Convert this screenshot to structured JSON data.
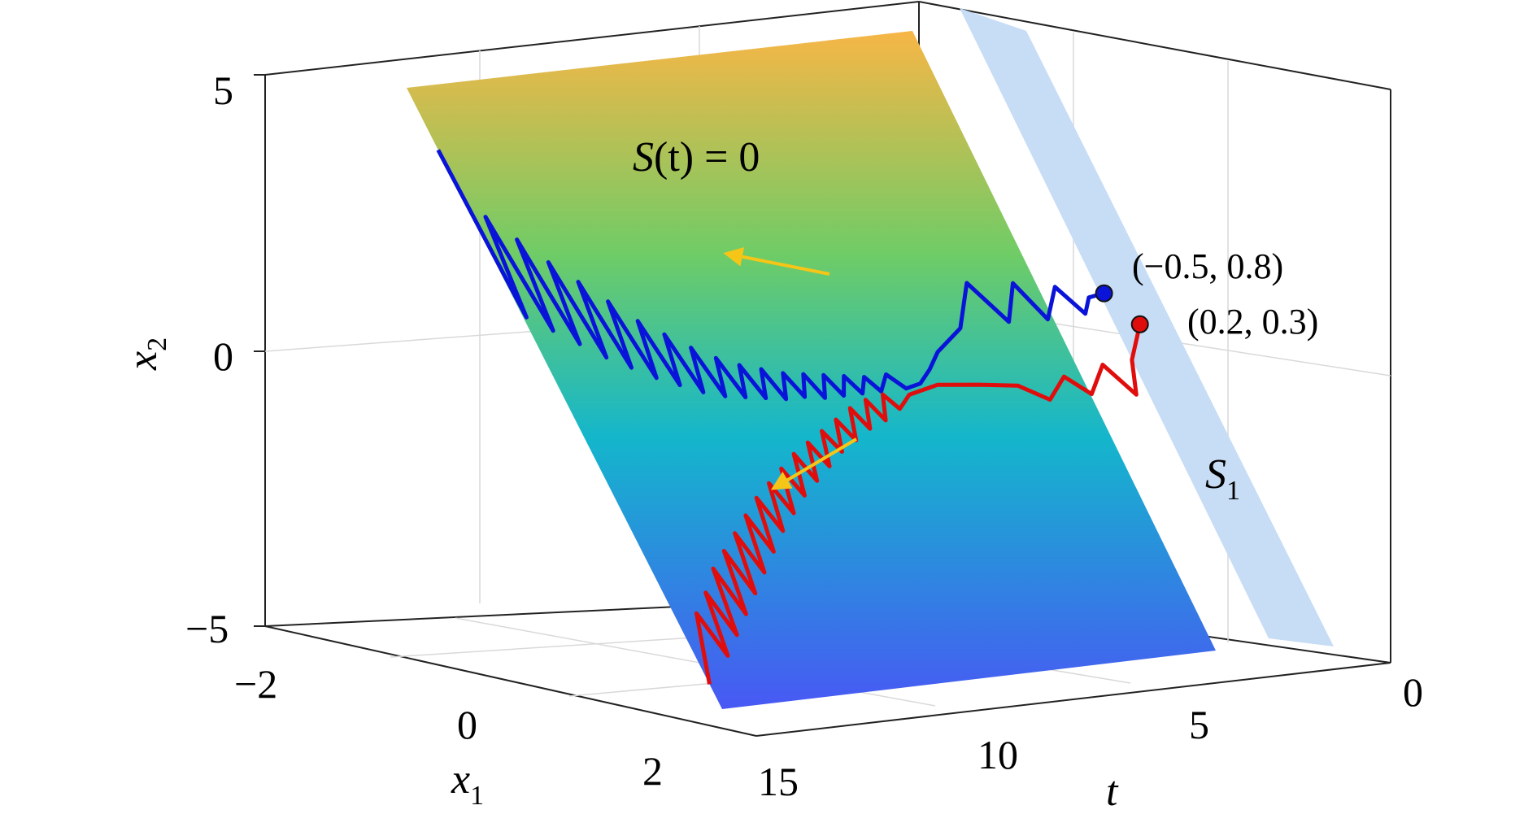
{
  "chart_data": {
    "type": "line",
    "dimensions": 3,
    "axes": {
      "x1": {
        "label": "x",
        "subscript": "1",
        "range": [
          -2.5,
          2.5
        ],
        "ticks": [
          "−2",
          "0",
          "2"
        ],
        "tick_values": [
          -2,
          0,
          2
        ]
      },
      "t": {
        "label": "t",
        "subscript": "",
        "range": [
          0,
          16
        ],
        "ticks": [
          "0",
          "5",
          "10",
          "15"
        ],
        "tick_values": [
          0,
          5,
          10,
          15
        ],
        "reversed": true
      },
      "x2": {
        "label": "x",
        "subscript": "2",
        "range": [
          -5,
          5
        ],
        "ticks": [
          "5",
          "0",
          "−5"
        ],
        "tick_values": [
          5,
          0,
          -5
        ]
      }
    },
    "grid": true,
    "surfaces": [
      {
        "name_main": "S",
        "name_paren": "(t) = 0",
        "kind": "sliding-surface",
        "colormap": [
          "#f7b646",
          "#6fcc66",
          "#14b6cc",
          "#4858f4"
        ]
      },
      {
        "name_main": "S",
        "name_sub": "1",
        "kind": "band",
        "color": "#c7dcf5"
      }
    ],
    "series": [
      {
        "color": "#0a14d8",
        "initial_label": "(−0.5, 0.8)",
        "initial_point": {
          "t": 0.6,
          "x1": -0.5,
          "x2": 0.8
        },
        "points": [
          [
            0.6,
            0.8
          ],
          [
            0.9,
            0.75
          ],
          [
            1.1,
            0.5
          ],
          [
            1.4,
            0.95
          ],
          [
            1.8,
            0.45
          ],
          [
            2.1,
            1.05
          ],
          [
            2.5,
            0.45
          ],
          [
            2.9,
            1.1
          ],
          [
            3.4,
            0.4
          ],
          [
            4.0,
            0.05
          ],
          [
            4.5,
            -0.2
          ],
          [
            5.0,
            -0.4
          ],
          [
            5.5,
            -0.45
          ],
          [
            5.9,
            -0.2
          ],
          [
            6.3,
            -0.45
          ],
          [
            6.6,
            -0.2
          ],
          [
            6.9,
            -0.45
          ],
          [
            7.2,
            -0.15
          ],
          [
            7.5,
            -0.45
          ],
          [
            7.8,
            -0.1
          ],
          [
            8.1,
            -0.45
          ],
          [
            8.4,
            -0.05
          ],
          [
            8.7,
            -0.4
          ],
          [
            9.0,
            0.0
          ],
          [
            9.3,
            -0.4
          ],
          [
            9.6,
            0.1
          ],
          [
            9.9,
            -0.35
          ],
          [
            10.2,
            0.2
          ],
          [
            10.5,
            -0.3
          ],
          [
            10.8,
            0.35
          ],
          [
            11.1,
            -0.25
          ],
          [
            11.4,
            0.55
          ],
          [
            11.7,
            -0.15
          ],
          [
            12.0,
            0.8
          ],
          [
            12.3,
            0.0
          ],
          [
            12.6,
            1.05
          ],
          [
            12.9,
            0.15
          ],
          [
            13.2,
            1.4
          ],
          [
            13.5,
            0.35
          ],
          [
            13.8,
            1.75
          ],
          [
            14.1,
            0.55
          ],
          [
            14.4,
            2.1
          ],
          [
            14.7,
            0.8
          ],
          [
            15.0,
            2.5
          ],
          [
            15.3,
            1.05
          ],
          [
            15.6,
            2.9
          ],
          [
            15.9,
            1.3
          ],
          [
            16.0,
            4.0
          ]
        ]
      },
      {
        "color": "#e00d0d",
        "initial_label": "(0.2, 0.3)",
        "initial_point": {
          "t": 0.6,
          "x1": 0.2,
          "x2": 0.3
        },
        "points": [
          [
            0.6,
            0.3
          ],
          [
            1.0,
            -0.25
          ],
          [
            1.2,
            -0.8
          ],
          [
            1.5,
            -0.3
          ],
          [
            1.9,
            -0.75
          ],
          [
            2.2,
            -0.45
          ],
          [
            2.6,
            -0.8
          ],
          [
            3.0,
            -0.55
          ],
          [
            3.6,
            -0.5
          ],
          [
            4.5,
            -0.45
          ],
          [
            5.5,
            -0.55
          ],
          [
            6.0,
            -0.75
          ],
          [
            6.3,
            -0.5
          ],
          [
            6.6,
            -0.9
          ],
          [
            6.9,
            -0.55
          ],
          [
            7.2,
            -1.0
          ],
          [
            7.5,
            -0.65
          ],
          [
            7.8,
            -1.15
          ],
          [
            8.1,
            -0.8
          ],
          [
            8.4,
            -1.3
          ],
          [
            8.7,
            -0.95
          ],
          [
            9.0,
            -1.5
          ],
          [
            9.3,
            -1.1
          ],
          [
            9.6,
            -1.7
          ],
          [
            9.9,
            -1.25
          ],
          [
            10.2,
            -1.9
          ],
          [
            10.5,
            -1.45
          ],
          [
            10.8,
            -2.15
          ],
          [
            11.1,
            -1.65
          ],
          [
            11.4,
            -2.4
          ],
          [
            11.7,
            -1.85
          ],
          [
            12.0,
            -2.7
          ],
          [
            12.3,
            -2.1
          ],
          [
            12.6,
            -3.0
          ],
          [
            12.9,
            -2.35
          ],
          [
            13.2,
            -3.3
          ],
          [
            13.5,
            -2.6
          ],
          [
            13.8,
            -3.6
          ],
          [
            14.1,
            -2.85
          ],
          [
            14.4,
            -3.9
          ],
          [
            14.7,
            -3.2
          ],
          [
            15.0,
            -4.2
          ],
          [
            15.3,
            -3.5
          ],
          [
            16.0,
            -4.6
          ]
        ]
      }
    ],
    "annotations": [
      {
        "kind": "arrow",
        "color": "#f5c518",
        "meaning": "direction of motion on blue trajectory"
      },
      {
        "kind": "arrow",
        "color": "#f5c518",
        "meaning": "direction of motion on red trajectory"
      }
    ]
  }
}
